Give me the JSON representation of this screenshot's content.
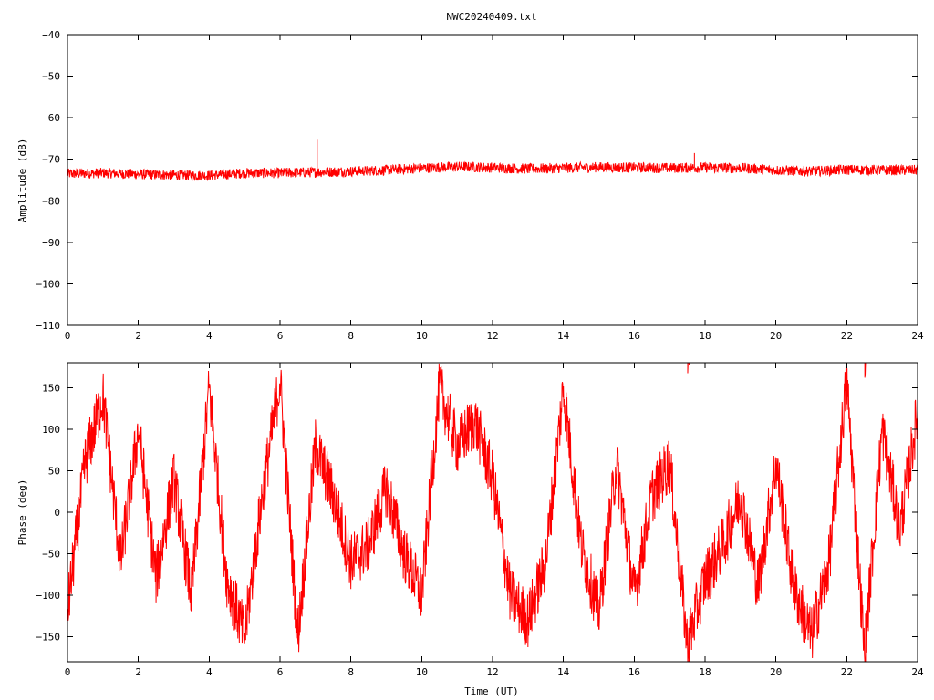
{
  "title": "NWC20240409.txt",
  "colors": {
    "series": "#ff0000",
    "axis": "#000000",
    "background": "#ffffff"
  },
  "chart_data": [
    {
      "type": "line",
      "title": "NWC20240409.txt",
      "xlabel": "",
      "ylabel": "Amplitude (dB)",
      "xlim": [
        0,
        24
      ],
      "ylim": [
        -110,
        -40
      ],
      "xticks": [
        0,
        2,
        4,
        6,
        8,
        10,
        12,
        14,
        16,
        18,
        20,
        22,
        24
      ],
      "xtick_labels": [
        "0",
        "2",
        "4",
        "6",
        "8",
        "10",
        "12",
        "14",
        "16",
        "18",
        "20",
        "22",
        "24"
      ],
      "yticks": [
        -110,
        -100,
        -90,
        -80,
        -70,
        -60,
        -50,
        -40
      ],
      "ytick_labels": [
        "-110",
        "-100",
        "-90",
        "-80",
        "-70",
        "-60",
        "-50",
        "-40"
      ],
      "grid": false,
      "legend": "none",
      "series": [
        {
          "color": "#ff0000",
          "x": [
            0,
            1,
            2,
            3,
            4,
            5,
            6,
            7,
            8,
            9,
            10,
            11,
            12,
            13,
            14,
            15,
            16,
            17,
            18,
            19,
            20,
            21,
            22,
            23,
            24
          ],
          "y": [
            -73.5,
            -73.3,
            -73.6,
            -73.8,
            -73.9,
            -73.3,
            -73.3,
            -73.1,
            -72.9,
            -72.6,
            -72.1,
            -71.8,
            -72.0,
            -72.3,
            -72.1,
            -71.9,
            -72.0,
            -72.1,
            -72.0,
            -72.1,
            -72.6,
            -72.9,
            -72.5,
            -72.6,
            -72.6
          ],
          "noise_band": 2.5,
          "spikes": [
            {
              "x": 7.05,
              "y": -65.3
            },
            {
              "x": 17.7,
              "y": -68.5
            }
          ]
        }
      ]
    },
    {
      "type": "line",
      "title": "",
      "xlabel": "Time (UT)",
      "ylabel": "Phase (deg)",
      "xlim": [
        0,
        24
      ],
      "ylim": [
        -180,
        180
      ],
      "xticks": [
        0,
        2,
        4,
        6,
        8,
        10,
        12,
        14,
        16,
        18,
        20,
        22,
        24
      ],
      "xtick_labels": [
        "0",
        "2",
        "4",
        "6",
        "8",
        "10",
        "12",
        "14",
        "16",
        "18",
        "20",
        "22",
        "24"
      ],
      "yticks": [
        -150,
        -100,
        -50,
        0,
        50,
        100,
        150
      ],
      "ytick_labels": [
        "-150",
        "-100",
        "-50",
        "0",
        "50",
        "100",
        "150"
      ],
      "grid": false,
      "legend": "none",
      "series": [
        {
          "color": "#ff0000",
          "x": [
            0,
            0.5,
            1,
            1.5,
            2,
            2.5,
            3,
            3.5,
            4,
            4.5,
            5,
            5.5,
            6,
            6.5,
            7,
            7.5,
            8,
            8.5,
            9,
            9.5,
            10,
            10.5,
            11,
            11.5,
            12,
            12.5,
            13,
            13.5,
            14,
            14.5,
            15,
            15.5,
            16,
            16.5,
            17,
            17.5,
            18,
            18.5,
            19,
            19.5,
            20,
            20.5,
            21,
            21.5,
            22,
            22.5,
            23,
            23.5,
            24
          ],
          "y": [
            -120,
            60,
            140,
            -60,
            100,
            -80,
            40,
            -100,
            150,
            -80,
            -150,
            20,
            160,
            -150,
            80,
            20,
            -60,
            -40,
            30,
            -50,
            -100,
            150,
            80,
            110,
            40,
            -100,
            -130,
            -60,
            150,
            -40,
            -120,
            60,
            -100,
            20,
            60,
            -160,
            -80,
            -40,
            20,
            -90,
            60,
            -90,
            -150,
            -60,
            160,
            -170,
            100,
            -20,
            120
          ],
          "wrap_range": [
            -180,
            180
          ]
        }
      ]
    }
  ]
}
